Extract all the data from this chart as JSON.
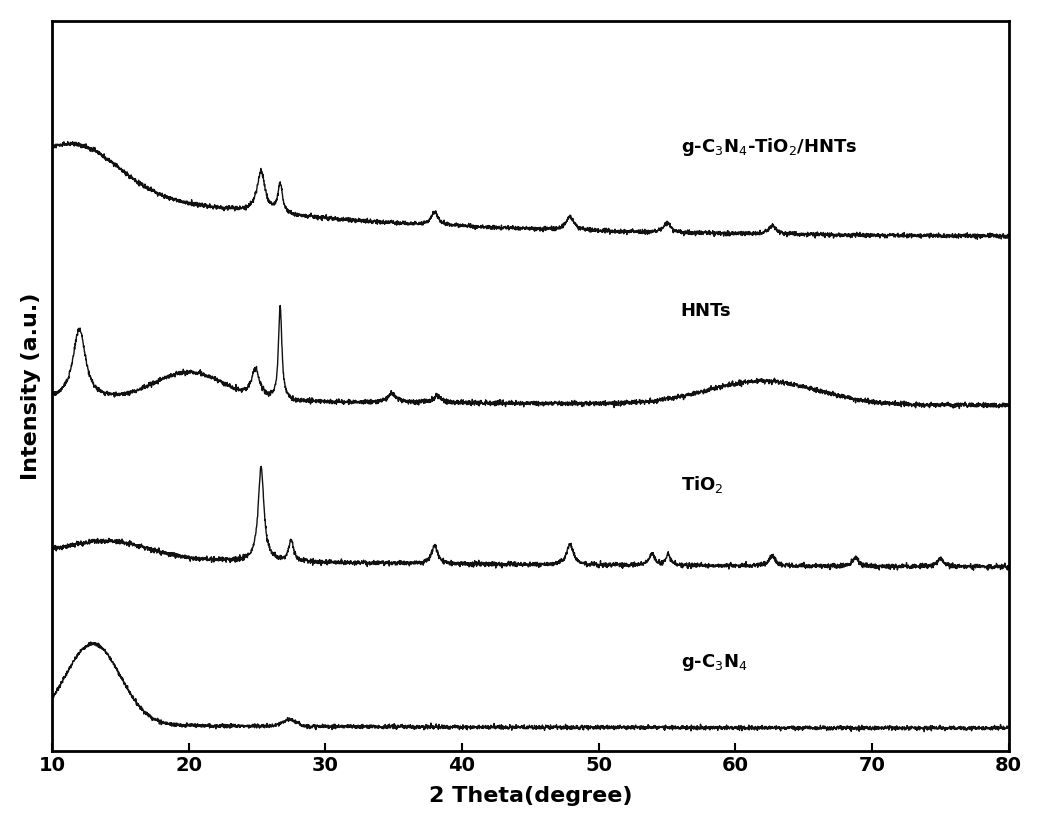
{
  "title": "",
  "xlabel": "2 Theta(degree)",
  "ylabel": "Intensity (a.u.)",
  "xlim": [
    10,
    80
  ],
  "x_ticks": [
    10,
    20,
    30,
    40,
    50,
    60,
    70,
    80
  ],
  "line_color": "#111111",
  "background_color": "#ffffff",
  "noise_scale": 0.012,
  "line_width": 1.0,
  "offsets": [
    0.0,
    1.05,
    2.1,
    3.2
  ],
  "scale": [
    0.55,
    0.65,
    0.65,
    0.6
  ]
}
